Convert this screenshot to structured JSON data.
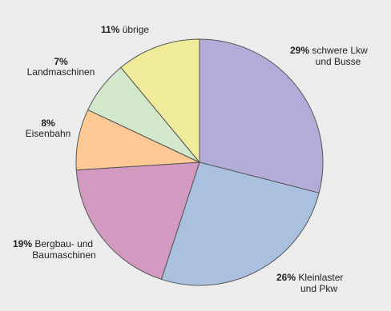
{
  "chart_data": {
    "type": "pie",
    "start_angle_deg": 90,
    "direction": "clockwise",
    "slices": [
      {
        "percent": 29,
        "pct_label": "29%",
        "line1": "schwere Lkw",
        "line2": "und Busse",
        "color": "#b4acd8"
      },
      {
        "percent": 26,
        "pct_label": "26%",
        "line1": "Kleinlaster",
        "line2": "und Pkw",
        "color": "#a9c0de"
      },
      {
        "percent": 19,
        "pct_label": "19%",
        "line1": "Bergbau- und",
        "line2": "Baumaschinen",
        "color": "#d29ac0"
      },
      {
        "percent": 8,
        "pct_label": "8%",
        "line1": "",
        "line2": "Eisenbahn",
        "color": "#fdc893"
      },
      {
        "percent": 7,
        "pct_label": "7%",
        "line1": "",
        "line2": "Landmaschinen",
        "color": "#d3e8ca"
      },
      {
        "percent": 11,
        "pct_label": "11%",
        "line1": "übrige",
        "line2": "",
        "color": "#f0eb9a"
      }
    ]
  }
}
